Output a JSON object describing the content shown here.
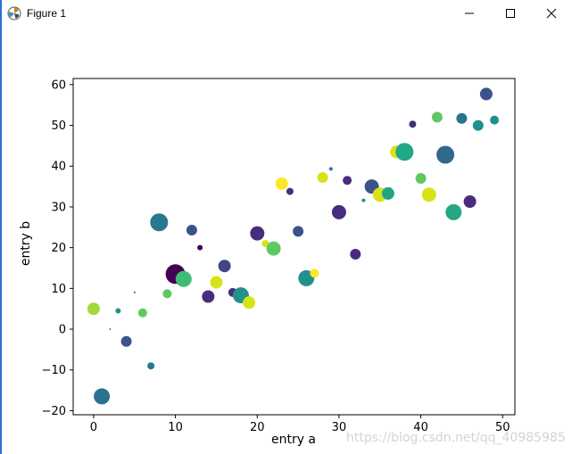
{
  "window": {
    "title": "Figure 1",
    "controls": {
      "minimize": "minimize",
      "maximize": "maximize",
      "close": "close"
    }
  },
  "watermark": "https://blog.csdn.net/qq_40985985",
  "chart_data": {
    "type": "scatter",
    "title": "",
    "xlabel": "entry a",
    "ylabel": "entry b",
    "xlim": [
      -2.5,
      51.5
    ],
    "ylim": [
      -21,
      61.5
    ],
    "xticks": [
      0,
      10,
      20,
      30,
      40,
      50
    ],
    "yticks": [
      -20,
      -10,
      0,
      10,
      20,
      30,
      40,
      50,
      60
    ],
    "grid": false,
    "colormap": "viridis",
    "points": [
      {
        "x": 0,
        "y": 5,
        "size": 7,
        "color": "#a0da39"
      },
      {
        "x": 1,
        "y": -16.5,
        "size": 9,
        "color": "#2c728e"
      },
      {
        "x": 2,
        "y": 0,
        "size": 1,
        "color": "#26828e"
      },
      {
        "x": 3,
        "y": 4.5,
        "size": 3,
        "color": "#21918c"
      },
      {
        "x": 4,
        "y": -3,
        "size": 6,
        "color": "#3b528b"
      },
      {
        "x": 5,
        "y": 9,
        "size": 1,
        "color": "#404688"
      },
      {
        "x": 6,
        "y": 4,
        "size": 5,
        "color": "#5ec962"
      },
      {
        "x": 7,
        "y": -9,
        "size": 4,
        "color": "#2a788e"
      },
      {
        "x": 8,
        "y": 26.2,
        "size": 10,
        "color": "#2a788e"
      },
      {
        "x": 9,
        "y": 8.7,
        "size": 5,
        "color": "#5ec962"
      },
      {
        "x": 10,
        "y": 13.5,
        "size": 11,
        "color": "#440154"
      },
      {
        "x": 11,
        "y": 12.3,
        "size": 9,
        "color": "#3fbc73"
      },
      {
        "x": 12,
        "y": 24.3,
        "size": 6,
        "color": "#3b528b"
      },
      {
        "x": 13,
        "y": 20,
        "size": 3,
        "color": "#440154"
      },
      {
        "x": 14,
        "y": 8,
        "size": 7,
        "color": "#472d7b"
      },
      {
        "x": 15,
        "y": 11.5,
        "size": 7,
        "color": "#d8e219"
      },
      {
        "x": 16,
        "y": 15.5,
        "size": 7,
        "color": "#404688"
      },
      {
        "x": 17,
        "y": 9,
        "size": 5,
        "color": "#472d7b"
      },
      {
        "x": 18,
        "y": 8.3,
        "size": 9,
        "color": "#21918c"
      },
      {
        "x": 19,
        "y": 6.5,
        "size": 7,
        "color": "#d8e219"
      },
      {
        "x": 20,
        "y": 23.5,
        "size": 8,
        "color": "#472d7b"
      },
      {
        "x": 21,
        "y": 21,
        "size": 4,
        "color": "#d8e219"
      },
      {
        "x": 22,
        "y": 19.8,
        "size": 8,
        "color": "#5ec962"
      },
      {
        "x": 23,
        "y": 35.7,
        "size": 7,
        "color": "#fde725"
      },
      {
        "x": 24,
        "y": 33.8,
        "size": 4,
        "color": "#472d7b"
      },
      {
        "x": 25,
        "y": 24,
        "size": 6,
        "color": "#3b528b"
      },
      {
        "x": 26,
        "y": 12.5,
        "size": 9,
        "color": "#21918c"
      },
      {
        "x": 27,
        "y": 13.7,
        "size": 5,
        "color": "#fde725"
      },
      {
        "x": 28,
        "y": 37.2,
        "size": 6,
        "color": "#d8e219"
      },
      {
        "x": 29,
        "y": 39.3,
        "size": 2,
        "color": "#2c728e"
      },
      {
        "x": 30,
        "y": 28.7,
        "size": 8,
        "color": "#472d7b"
      },
      {
        "x": 31,
        "y": 36.5,
        "size": 5,
        "color": "#472d7b"
      },
      {
        "x": 32,
        "y": 18.4,
        "size": 6,
        "color": "#472d7b"
      },
      {
        "x": 33,
        "y": 31.6,
        "size": 2,
        "color": "#21918c"
      },
      {
        "x": 34,
        "y": 35,
        "size": 8,
        "color": "#3b528b"
      },
      {
        "x": 35,
        "y": 33,
        "size": 8,
        "color": "#d8e219"
      },
      {
        "x": 36,
        "y": 33.3,
        "size": 7,
        "color": "#21a585"
      },
      {
        "x": 37,
        "y": 43.5,
        "size": 7,
        "color": "#d8e219"
      },
      {
        "x": 38,
        "y": 43.5,
        "size": 10,
        "color": "#22a884"
      },
      {
        "x": 39,
        "y": 50.3,
        "size": 4,
        "color": "#472d7b"
      },
      {
        "x": 40,
        "y": 37,
        "size": 6,
        "color": "#5ec962"
      },
      {
        "x": 41,
        "y": 33,
        "size": 8,
        "color": "#d8e219"
      },
      {
        "x": 42,
        "y": 52,
        "size": 6,
        "color": "#5ec962"
      },
      {
        "x": 43,
        "y": 42.8,
        "size": 10,
        "color": "#31688e"
      },
      {
        "x": 44,
        "y": 28.7,
        "size": 9,
        "color": "#22a884"
      },
      {
        "x": 45,
        "y": 51.7,
        "size": 6,
        "color": "#2c728e"
      },
      {
        "x": 46,
        "y": 31.3,
        "size": 7,
        "color": "#472d7b"
      },
      {
        "x": 47,
        "y": 50,
        "size": 6,
        "color": "#21918c"
      },
      {
        "x": 48,
        "y": 57.7,
        "size": 7,
        "color": "#3b528b"
      },
      {
        "x": 49,
        "y": 51.3,
        "size": 5,
        "color": "#21918c"
      }
    ]
  }
}
